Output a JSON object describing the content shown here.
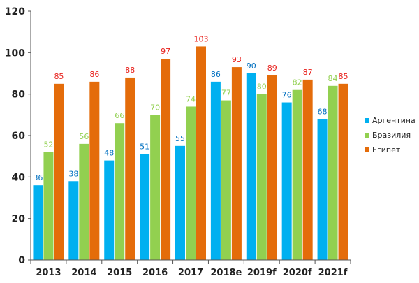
{
  "chart_data": {
    "type": "bar",
    "title": "",
    "xlabel": "",
    "ylabel": "",
    "ylim": [
      0,
      120
    ],
    "yticks": [
      0,
      20,
      40,
      60,
      80,
      100,
      120
    ],
    "grid": false,
    "legend_position": "right",
    "categories": [
      "2013",
      "2014",
      "2015",
      "2016",
      "2017",
      "2018e",
      "2019f",
      "2020f",
      "2021f"
    ],
    "series": [
      {
        "name": "Аргентина",
        "color": "#00B0F0",
        "label_color": "#0070C0",
        "values": [
          36,
          38,
          48,
          51,
          55,
          86,
          90,
          76,
          68
        ]
      },
      {
        "name": "Бразилия",
        "color": "#92D050",
        "label_color": "#92D050",
        "values": [
          52,
          56,
          66,
          70,
          74,
          77,
          80,
          82,
          84
        ]
      },
      {
        "name": "Египет",
        "color": "#E46C0A",
        "label_color": "#E8201B",
        "values": [
          85,
          86,
          88,
          97,
          103,
          93,
          89,
          87,
          85
        ]
      }
    ]
  }
}
